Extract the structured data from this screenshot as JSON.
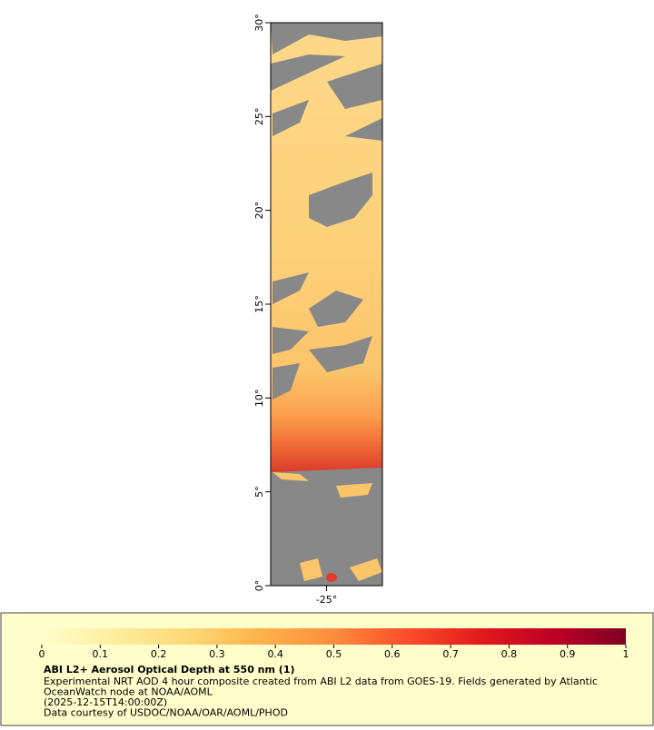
{
  "map": {
    "lat_lim": [
      0,
      30
    ],
    "lat_ticks": [
      {
        "value": 0,
        "label": "0°"
      },
      {
        "value": 5,
        "label": "5°"
      },
      {
        "value": 10,
        "label": "10°"
      },
      {
        "value": 15,
        "label": "15°"
      },
      {
        "value": 20,
        "label": "20°"
      },
      {
        "value": 25,
        "label": "25°"
      },
      {
        "value": 30,
        "label": "30°"
      }
    ],
    "lon_lim": [
      -28,
      -22
    ],
    "lon_ticks": [
      {
        "value": -25,
        "label": "-25°"
      }
    ]
  },
  "colorbar": {
    "lim": [
      0,
      1
    ],
    "ticks": [
      0,
      0.1,
      0.2,
      0.3,
      0.4,
      0.5,
      0.6,
      0.7,
      0.8,
      0.9,
      1
    ],
    "colors": [
      "#ffffcc",
      "#ffeda0",
      "#fed976",
      "#feb24c",
      "#fd8d3c",
      "#fc4e2a",
      "#e31a1c",
      "#bd0026",
      "#800026"
    ]
  },
  "legend": {
    "title": "ABI L2+ Aerosol Optical Depth at 550 nm (1)",
    "lines": [
      "Experimental NRT AOD 4 hour composite created from ABI L2 data from GOES-19. Fields generated by Atlantic",
      "OceanWatch node at NOAA/AOML",
      "(2025-12-15T14:00:00Z)",
      "Data courtesy of USDOC/NOAA/OAR/AOML/PHOD"
    ]
  }
}
